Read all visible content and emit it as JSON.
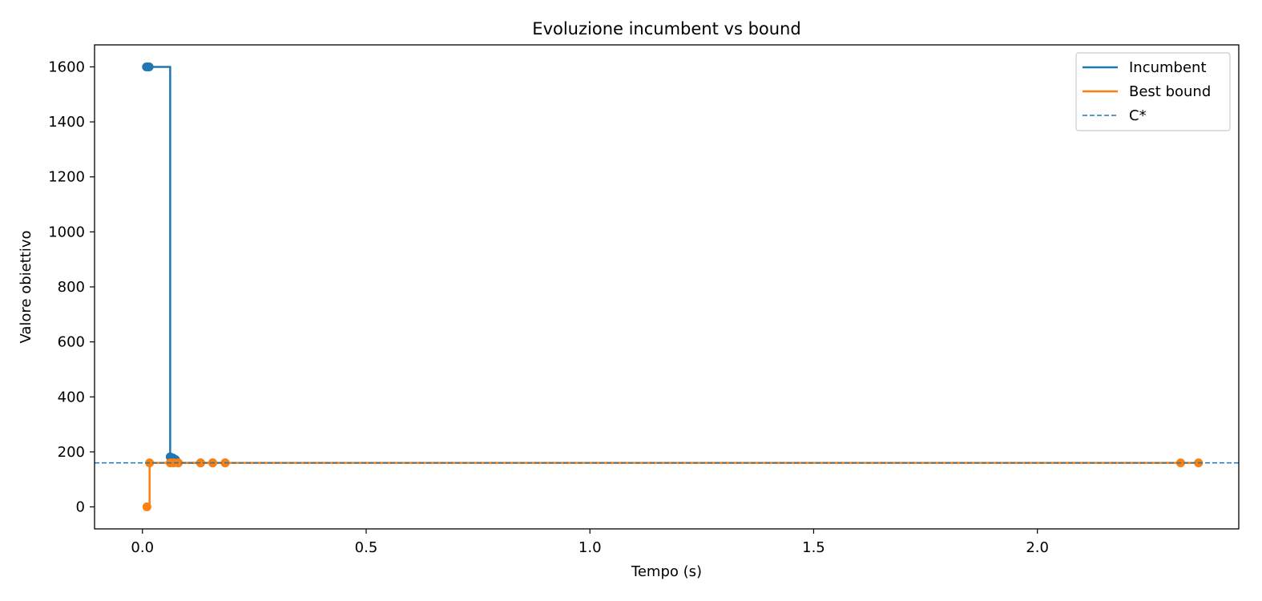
{
  "chart_data": {
    "type": "line",
    "title": "Evoluzione incumbent vs bound",
    "xlabel": "Tempo (s)",
    "ylabel": "Valore obiettivo",
    "xlim": [
      -0.107,
      2.45
    ],
    "ylim": [
      -80,
      1680
    ],
    "xticks": [
      0.0,
      0.5,
      1.0,
      1.5,
      2.0
    ],
    "xtick_labels": [
      "0.0",
      "0.5",
      "1.0",
      "1.5",
      "2.0"
    ],
    "yticks": [
      0,
      200,
      400,
      600,
      800,
      1000,
      1200,
      1400,
      1600
    ],
    "ytick_labels": [
      "0",
      "200",
      "400",
      "600",
      "800",
      "1000",
      "1200",
      "1400",
      "1600"
    ],
    "grid": false,
    "legend": "top-right",
    "series": [
      {
        "name": "Incumbent",
        "color": "#1f77b4",
        "step": "post",
        "x": [
          0.009,
          0.012,
          0.015,
          0.062,
          0.068,
          0.074,
          0.08,
          0.13,
          0.157,
          0.185
        ],
        "y": [
          1600,
          1600,
          1600,
          182,
          178,
          172,
          160,
          160,
          160,
          160
        ]
      },
      {
        "name": "Best bound",
        "color": "#ff7f0e",
        "step": "post",
        "x": [
          0.01,
          0.016,
          0.062,
          0.07,
          0.08,
          0.13,
          0.157,
          0.185,
          2.32,
          2.36
        ],
        "y": [
          0,
          160,
          160,
          160,
          160,
          160,
          160,
          160,
          160,
          160
        ]
      }
    ],
    "reference_line": {
      "name": "C*",
      "y": 160,
      "color": "#1f77b4",
      "style": "dashed"
    }
  }
}
